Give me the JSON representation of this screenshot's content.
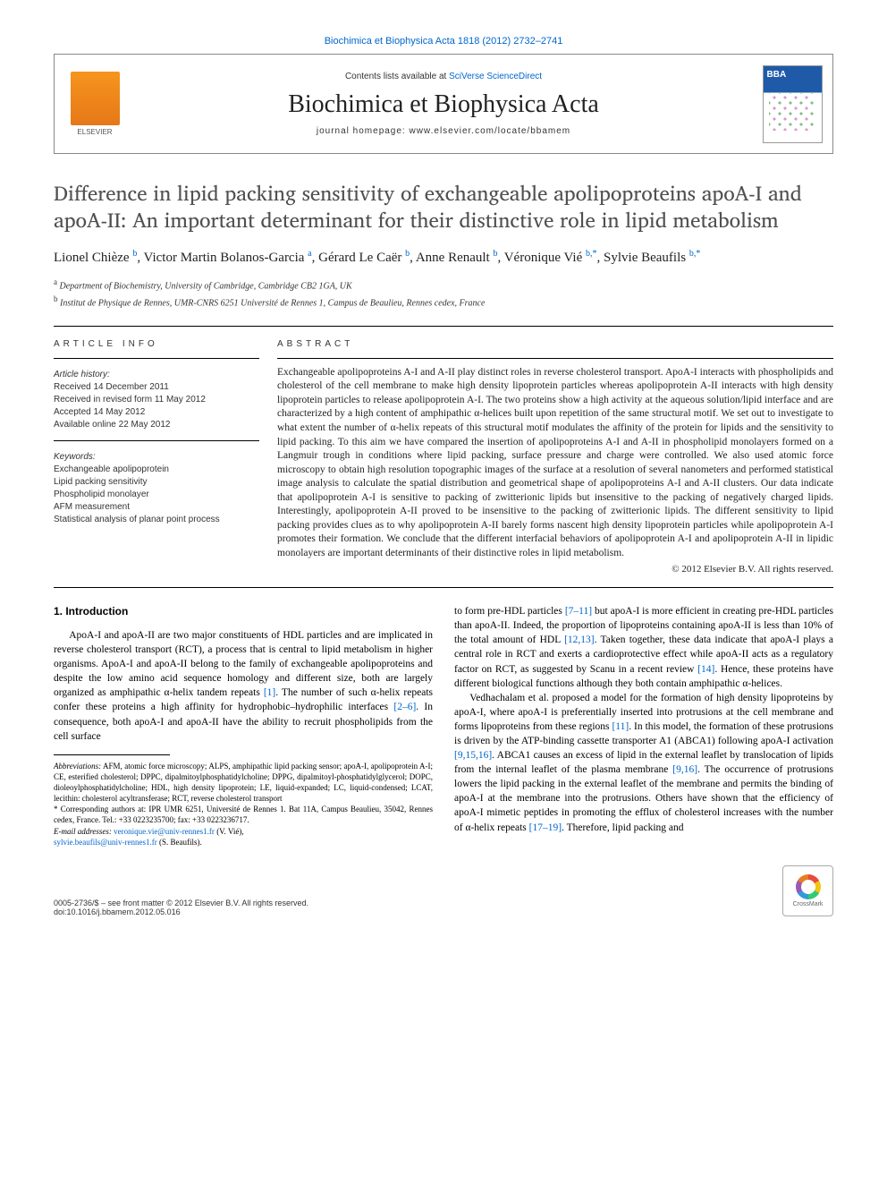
{
  "top_link": "Biochimica et Biophysica Acta 1818 (2012) 2732–2741",
  "header": {
    "contents_prefix": "Contents lists available at ",
    "contents_link": "SciVerse ScienceDirect",
    "journal": "Biochimica et Biophysica Acta",
    "homepage": "journal homepage: www.elsevier.com/locate/bbamem",
    "elsevier_label": "ELSEVIER"
  },
  "title": "Difference in lipid packing sensitivity of exchangeable apolipoproteins apoA-I and apoA-II: An important determinant for their distinctive role in lipid metabolism",
  "authors_html": "Lionel Chièze <sup>b</sup>, Victor Martin Bolanos-Garcia <sup>a</sup>, Gérard Le Caër <sup>b</sup>, Anne Renault <sup>b</sup>, Véronique Vié <sup>b,*</sup>, Sylvie Beaufils <sup>b,*</sup>",
  "affiliations": {
    "a": "Department of Biochemistry, University of Cambridge, Cambridge CB2 1GA, UK",
    "b": "Institut de Physique de Rennes, UMR-CNRS 6251 Université de Rennes 1, Campus de Beaulieu, Rennes cedex, France"
  },
  "article_info": {
    "heading": "ARTICLE INFO",
    "history_label": "Article history:",
    "history": [
      "Received 14 December 2011",
      "Received in revised form 11 May 2012",
      "Accepted 14 May 2012",
      "Available online 22 May 2012"
    ],
    "keywords_label": "Keywords:",
    "keywords": [
      "Exchangeable apolipoprotein",
      "Lipid packing sensitivity",
      "Phospholipid monolayer",
      "AFM measurement",
      "Statistical analysis of planar point process"
    ]
  },
  "abstract": {
    "heading": "ABSTRACT",
    "text": "Exchangeable apolipoproteins A-I and A-II play distinct roles in reverse cholesterol transport. ApoA-I interacts with phospholipids and cholesterol of the cell membrane to make high density lipoprotein particles whereas apolipoprotein A-II interacts with high density lipoprotein particles to release apolipoprotein A-I. The two proteins show a high activity at the aqueous solution/lipid interface and are characterized by a high content of amphipathic α-helices built upon repetition of the same structural motif. We set out to investigate to what extent the number of α-helix repeats of this structural motif modulates the affinity of the protein for lipids and the sensitivity to lipid packing. To this aim we have compared the insertion of apolipoproteins A-I and A-II in phospholipid monolayers formed on a Langmuir trough in conditions where lipid packing, surface pressure and charge were controlled. We also used atomic force microscopy to obtain high resolution topographic images of the surface at a resolution of several nanometers and performed statistical image analysis to calculate the spatial distribution and geometrical shape of apolipoproteins A-I and A-II clusters. Our data indicate that apolipoprotein A-I is sensitive to packing of zwitterionic lipids but insensitive to the packing of negatively charged lipids. Interestingly, apolipoprotein A-II proved to be insensitive to the packing of zwitterionic lipids. The different sensitivity to lipid packing provides clues as to why apolipoprotein A-II barely forms nascent high density lipoprotein particles while apolipoprotein A-I promotes their formation. We conclude that the different interfacial behaviors of apolipoprotein A-I and apolipoprotein A-II in lipidic monolayers are important determinants of their distinctive roles in lipid metabolism.",
    "copyright": "© 2012 Elsevier B.V. All rights reserved."
  },
  "intro_heading": "1. Introduction",
  "intro_p1": "ApoA-I and apoA-II are two major constituents of HDL particles and are implicated in reverse cholesterol transport (RCT), a process that is central to lipid metabolism in higher organisms. ApoA-I and apoA-II belong to the family of exchangeable apolipoproteins and despite the low amino acid sequence homology and different size, both are largely organized as amphipathic α-helix tandem repeats ",
  "intro_p1_ref1": "[1]",
  "intro_p1_cont": ". The number of such α-helix repeats confer these proteins a high affinity for hydrophobic–hydrophilic interfaces ",
  "intro_p1_ref2": "[2–6]",
  "intro_p1_end": ". In consequence, both apoA-I and apoA-II have the ability to recruit phospholipids from the cell surface",
  "col2_p1_a": "to form pre-HDL particles ",
  "col2_p1_ref1": "[7–11]",
  "col2_p1_b": " but apoA-I is more efficient in creating pre-HDL particles than apoA-II. Indeed, the proportion of lipoproteins containing apoA-II is less than 10% of the total amount of HDL ",
  "col2_p1_ref2": "[12,13]",
  "col2_p1_c": ". Taken together, these data indicate that apoA-I plays a central role in RCT and exerts a cardioprotective effect while apoA-II acts as a regulatory factor on RCT, as suggested by Scanu in a recent review ",
  "col2_p1_ref3": "[14]",
  "col2_p1_d": ". Hence, these proteins have different biological functions although they both contain amphipathic α-helices.",
  "col2_p2_a": "Vedhachalam et al. proposed a model for the formation of high density lipoproteins by apoA-I, where apoA-I is preferentially inserted into protrusions at the cell membrane and forms lipoproteins from these regions ",
  "col2_p2_ref1": "[11]",
  "col2_p2_b": ". In this model, the formation of these protrusions is driven by the ATP-binding cassette transporter A1 (ABCA1) following apoA-I activation ",
  "col2_p2_ref2": "[9,15,16]",
  "col2_p2_c": ". ABCA1 causes an excess of lipid in the external leaflet by translocation of lipids from the internal leaflet of the plasma membrane ",
  "col2_p2_ref3": "[9,16]",
  "col2_p2_d": ". The occurrence of protrusions lowers the lipid packing in the external leaflet of the membrane and permits the binding of apoA-I at the membrane into the protrusions. Others have shown that the efficiency of apoA-I mimetic peptides in promoting the efflux of cholesterol increases with the number of α-helix repeats ",
  "col2_p2_ref4": "[17–19]",
  "col2_p2_e": ". Therefore, lipid packing and",
  "footnotes": {
    "abbrev_label": "Abbreviations:",
    "abbrev": " AFM, atomic force microscopy; ALPS, amphipathic lipid packing sensor; apoA-I, apolipoprotein A-I; CE, esterified cholesterol; DPPC, dipalmitoylphosphatidylcholine; DPPG, dipalmitoyl-phosphatidylglycerol; DOPC, dioleoylphosphatidylcholine; HDL, high density lipoprotein; LE, liquid-expanded; LC, liquid-condensed; LCAT, lecithin: cholesterol acyltransferase; RCT, reverse cholesterol transport",
    "corr": "* Corresponding authors at: IPR UMR 6251, Université de Rennes 1. Bat 11A, Campus Beaulieu, 35042, Rennes cedex, France. Tel.: +33 0223235700; fax: +33 0223236717.",
    "email_label": "E-mail addresses: ",
    "email1": "veronique.vie@univ-rennes1.fr",
    "email1_who": " (V. Vié),",
    "email2": "sylvie.beaufils@univ-rennes1.fr",
    "email2_who": " (S. Beaufils)."
  },
  "footer": {
    "front_matter": "0005-2736/$ – see front matter © 2012 Elsevier B.V. All rights reserved.",
    "doi": "doi:10.1016/j.bbamem.2012.05.016",
    "crossmark": "CrossMark"
  },
  "colors": {
    "link": "#0066cc",
    "title_gray": "#505050",
    "elsevier_orange": "#f7941e"
  }
}
